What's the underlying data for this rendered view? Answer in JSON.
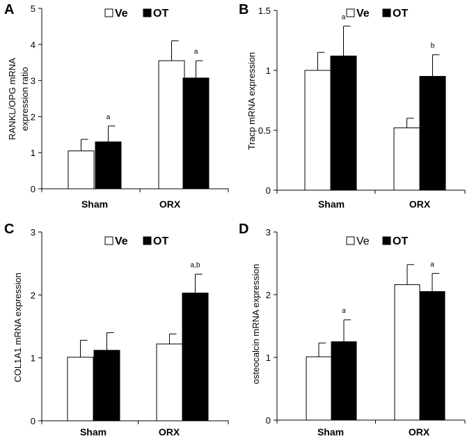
{
  "chart_data": [
    {
      "panel": "A",
      "type": "bar",
      "ylabel": [
        "RANKL/OPG mRNA",
        "expression ratio"
      ],
      "categories": [
        "Sham",
        "ORX"
      ],
      "ylim": [
        0,
        5
      ],
      "yticks": [
        0,
        1,
        2,
        3,
        4,
        5
      ],
      "series": [
        {
          "name": "Ve",
          "values": [
            1.05,
            3.55
          ],
          "errors": [
            0.32,
            0.55
          ],
          "fill": "#ffffff"
        },
        {
          "name": "OT",
          "values": [
            1.3,
            3.07
          ],
          "errors": [
            0.44,
            0.48
          ],
          "fill": "#000000"
        }
      ],
      "annotations": [
        [
          "",
          "a"
        ],
        [
          "",
          "a"
        ]
      ]
    },
    {
      "panel": "B",
      "type": "bar",
      "ylabel": [
        "Tracp mRNA expression"
      ],
      "categories": [
        "Sham",
        "ORX"
      ],
      "ylim": [
        0,
        1.5
      ],
      "yticks": [
        "0",
        "0.5",
        "1",
        "1.5"
      ],
      "series": [
        {
          "name": "Ve",
          "values": [
            1.0,
            0.52
          ],
          "errors": [
            0.15,
            0.08
          ],
          "fill": "#ffffff"
        },
        {
          "name": "OT",
          "values": [
            1.12,
            0.95
          ],
          "errors": [
            0.25,
            0.18
          ],
          "fill": "#000000"
        }
      ],
      "annotations": [
        [
          "",
          "a"
        ],
        [
          "",
          "b"
        ]
      ]
    },
    {
      "panel": "C",
      "type": "bar",
      "ylabel": [
        "COL1A1 mRNA expression"
      ],
      "categories": [
        "Sham",
        "ORX"
      ],
      "ylim": [
        0,
        3
      ],
      "yticks": [
        0,
        1,
        2,
        3
      ],
      "series": [
        {
          "name": "Ve",
          "values": [
            1.01,
            1.22
          ],
          "errors": [
            0.27,
            0.16
          ],
          "fill": "#ffffff"
        },
        {
          "name": "OT",
          "values": [
            1.12,
            2.03
          ],
          "errors": [
            0.28,
            0.3
          ],
          "fill": "#000000"
        }
      ],
      "annotations": [
        [
          "",
          ""
        ],
        [
          "",
          "a,b"
        ]
      ]
    },
    {
      "panel": "D",
      "type": "bar",
      "ylabel": [
        "osteocalcin mRNA expression"
      ],
      "categories": [
        "Sham",
        "ORX"
      ],
      "ylim": [
        0,
        3
      ],
      "yticks": [
        0,
        1,
        2,
        3
      ],
      "series": [
        {
          "name": "Ve",
          "values": [
            1.01,
            2.16
          ],
          "errors": [
            0.22,
            0.32
          ],
          "fill": "#ffffff"
        },
        {
          "name": "OT",
          "values": [
            1.25,
            2.05
          ],
          "errors": [
            0.35,
            0.29
          ],
          "fill": "#000000"
        }
      ],
      "annotations": [
        [
          "",
          "a"
        ],
        [
          "",
          "a"
        ]
      ]
    }
  ]
}
